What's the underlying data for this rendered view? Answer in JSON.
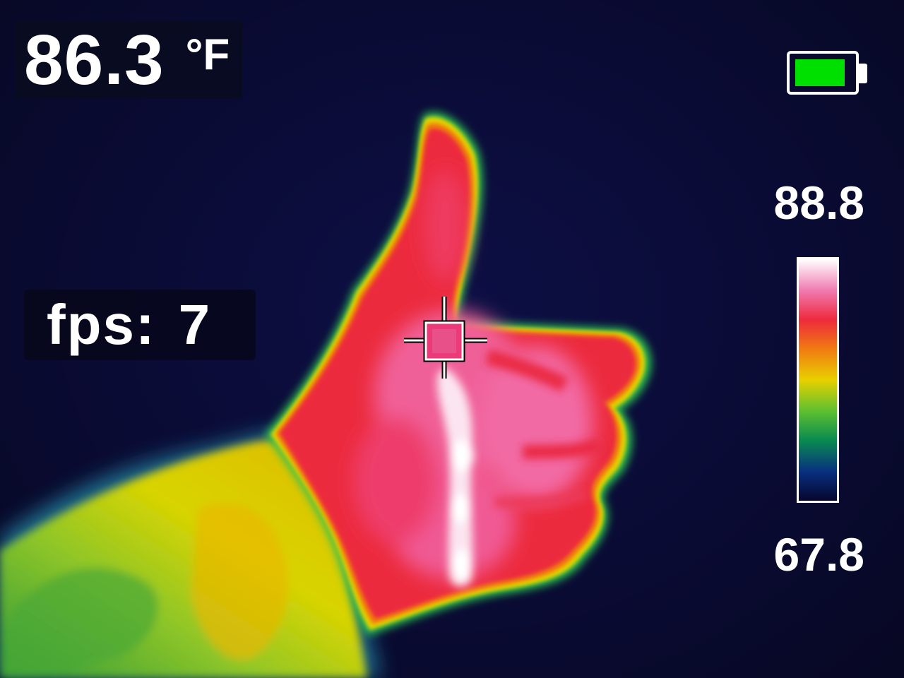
{
  "readout": {
    "temperature_value": "86.3",
    "temperature_unit": "°F"
  },
  "fps": {
    "label": "fps:",
    "value": "7"
  },
  "battery": {
    "level": 0.9,
    "color": "#00e000"
  },
  "scale": {
    "max": "88.8",
    "min": "67.8",
    "palette": [
      "#ffffff",
      "#f07ab0",
      "#ee2a3c",
      "#f08010",
      "#e8d000",
      "#5cc030",
      "#0a8a50",
      "#083080",
      "#06062c"
    ]
  },
  "crosshair": {
    "icon": "crosshair-icon"
  },
  "scene": {
    "subject": "thumbs-up-hand-thermal",
    "colors": {
      "background": "#0a0b34",
      "hot": "#ee2a3c",
      "hottest": "#ffffff",
      "warm": "#e8d000",
      "cool": "#5cc030"
    }
  }
}
